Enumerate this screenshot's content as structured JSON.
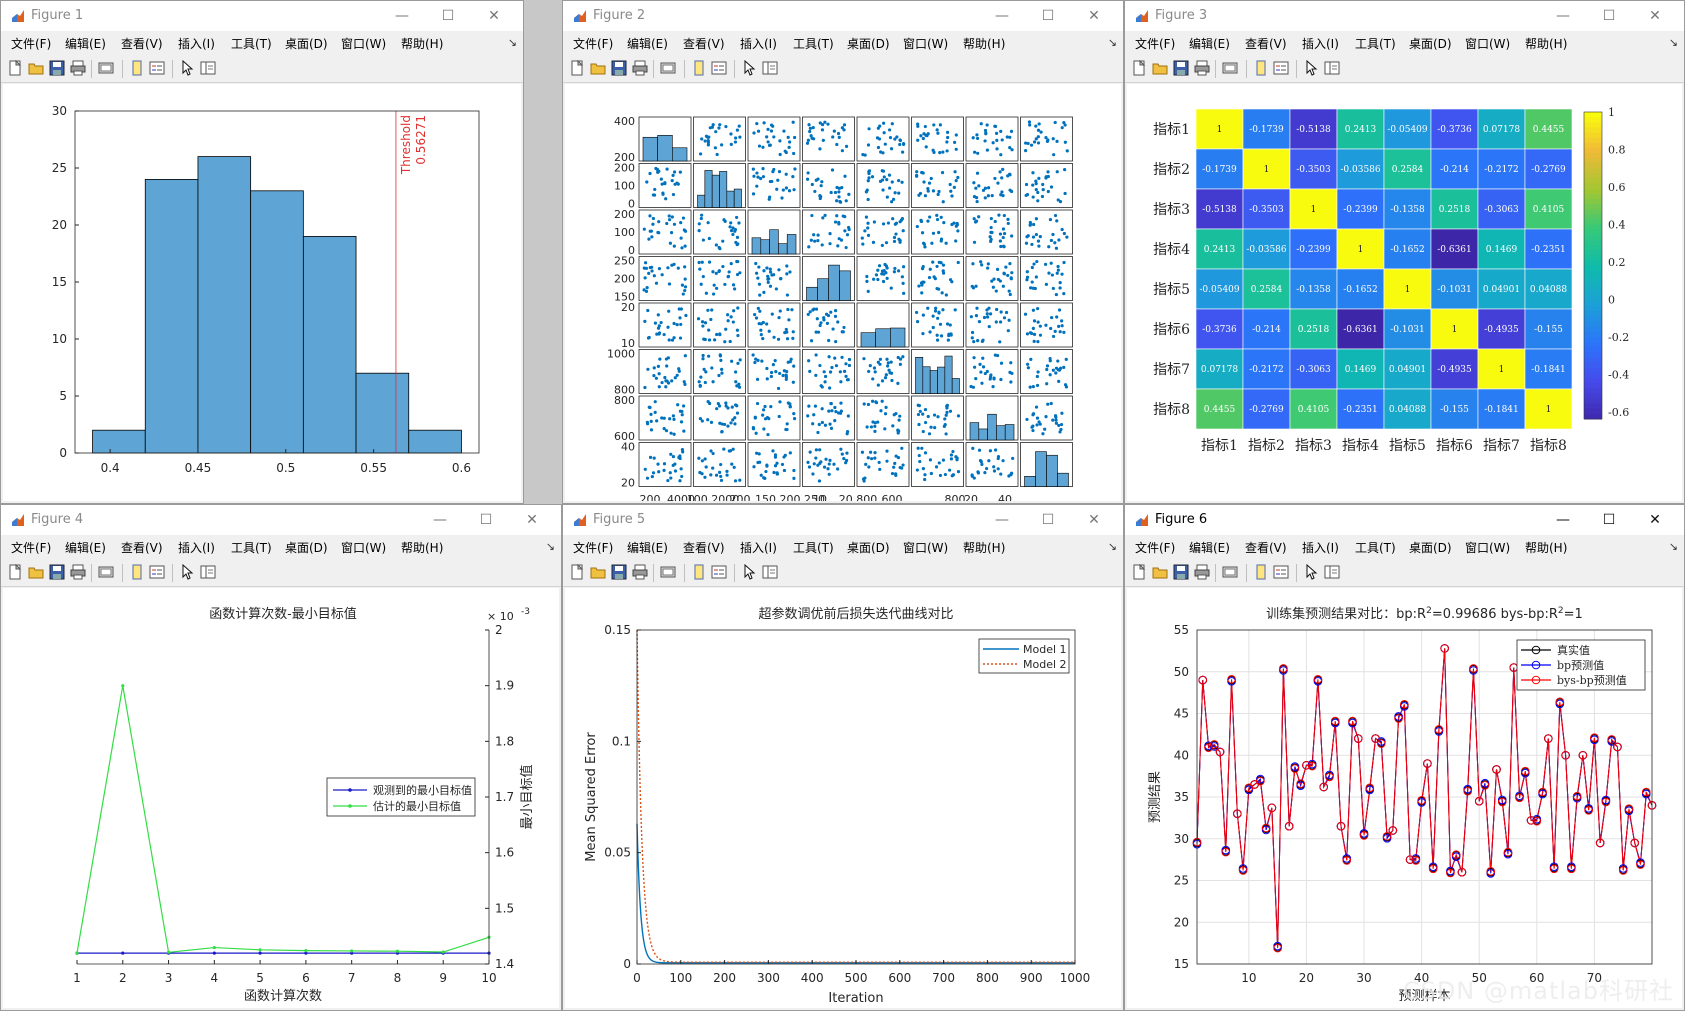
{
  "menus": [
    "文件(F)",
    "编辑(E)",
    "查看(V)",
    "插入(I)",
    "工具(T)",
    "桌面(D)",
    "窗口(W)",
    "帮助(H)"
  ],
  "window_buttons": {
    "minimize": "—",
    "maximize": "☐",
    "close": "✕"
  },
  "toolbar_icons": [
    "new-figure-icon",
    "open-folder-icon",
    "save-icon",
    "print-icon",
    "print-preview-icon",
    "link-plot-icon",
    "insert-legend-icon",
    "pointer-icon",
    "property-inspector-icon"
  ],
  "figures": [
    {
      "title": "Figure 1",
      "active": false
    },
    {
      "title": "Figure 2",
      "active": false
    },
    {
      "title": "Figure 3",
      "active": false
    },
    {
      "title": "Figure 4",
      "active": false
    },
    {
      "title": "Figure 5",
      "active": false
    },
    {
      "title": "Figure 6",
      "active": true
    }
  ],
  "watermark": "CSDN @matlab科研社",
  "chart_data": [
    {
      "type": "bar",
      "subtype": "histogram",
      "bin_edges": [
        0.39,
        0.42,
        0.45,
        0.48,
        0.51,
        0.54,
        0.57,
        0.6
      ],
      "values": [
        2,
        24,
        26,
        23,
        19,
        7,
        2
      ],
      "xlim": [
        0.38,
        0.61
      ],
      "ylim": [
        0,
        30
      ],
      "xticks": [
        0.4,
        0.45,
        0.5,
        0.55,
        0.6
      ],
      "xtick_labels": [
        "0.4",
        "0.45",
        "0.5",
        "0.55",
        "0.6"
      ],
      "yticks": [
        0,
        5,
        10,
        15,
        20,
        25,
        30
      ],
      "ytick_labels": [
        "0",
        "5",
        "10",
        "15",
        "20",
        "25",
        "30"
      ],
      "threshold": {
        "value": 0.56271,
        "label": "Threshold",
        "value_label": "0.56271",
        "color": "#e03030"
      },
      "bar_color": "#5ea5d5"
    },
    {
      "type": "scatter",
      "subtype": "scatter-matrix",
      "n": 8,
      "ytick_labels": [
        [
          "200",
          "400"
        ],
        [
          "0",
          "100",
          "200"
        ],
        [
          "0",
          "100",
          "200"
        ],
        [
          "150",
          "200",
          "250"
        ],
        [
          "10",
          "20"
        ],
        [
          "800",
          "1000"
        ],
        [
          "600",
          "800"
        ],
        [
          "20",
          "40"
        ]
      ],
      "xtick_label_text": [
        "200",
        "4000",
        "100 2000",
        "200",
        "150 200 250",
        "10",
        "20 800",
        "600",
        "800",
        "20",
        "40"
      ],
      "color": "#0072bd"
    },
    {
      "type": "heatmap",
      "row_labels": [
        "指标1",
        "指标2",
        "指标3",
        "指标4",
        "指标5",
        "指标6",
        "指标7",
        "指标8"
      ],
      "col_labels": [
        "指标1",
        "指标2",
        "指标3",
        "指标4",
        "指标5",
        "指标6",
        "指标7",
        "指标8"
      ],
      "cells": [
        [
          "1",
          "-0.1739",
          "-0.5138",
          "0.2413",
          "-0.05409",
          "-0.3736",
          "0.07178",
          "0.4455"
        ],
        [
          "-0.1739",
          "1",
          "-0.3503",
          "-0.03586",
          "0.2584",
          "-0.214",
          "-0.2172",
          "-0.2769"
        ],
        [
          "-0.5138",
          "-0.3503",
          "1",
          "-0.2399",
          "-0.1358",
          "0.2518",
          "-0.3063",
          "0.4105"
        ],
        [
          "0.2413",
          "-0.03586",
          "-0.2399",
          "1",
          "-0.1652",
          "-0.6361",
          "0.1469",
          "-0.2351"
        ],
        [
          "-0.05409",
          "0.2584",
          "-0.1358",
          "-0.1652",
          "1",
          "-0.1031",
          "0.04901",
          "0.04088"
        ],
        [
          "-0.3736",
          "-0.214",
          "0.2518",
          "-0.6361",
          "-0.1031",
          "1",
          "-0.4935",
          "-0.155"
        ],
        [
          "0.07178",
          "-0.2172",
          "-0.3063",
          "0.1469",
          "0.04901",
          "-0.4935",
          "1",
          "-0.1841"
        ],
        [
          "0.4455",
          "-0.2769",
          "0.4105",
          "-0.2351",
          "0.04088",
          "-0.155",
          "-0.1841",
          "1"
        ]
      ],
      "clim": [
        -0.6361,
        1
      ],
      "colorbar_ticks": [
        "1",
        "0.8",
        "0.6",
        "0.4",
        "0.2",
        "0",
        "-0.2",
        "-0.4",
        "-0.6"
      ],
      "colormap": "parula"
    },
    {
      "type": "line",
      "title": "函数计算次数-最小目标值",
      "xlabel": "函数计算次数",
      "ylabel": "最小目标值",
      "x": [
        1,
        2,
        3,
        4,
        5,
        6,
        7,
        8,
        9,
        10
      ],
      "xlim": [
        1,
        10
      ],
      "ylim": [
        1.4,
        2.0
      ],
      "exponent_label": "× 10",
      "exponent": "-3",
      "yticks": [
        "1.4",
        "1.5",
        "1.6",
        "1.7",
        "1.8",
        "1.9",
        "2"
      ],
      "series": [
        {
          "name": "观测到的最小目标值",
          "color": "#1a1ac8",
          "values": [
            1.4195,
            1.4195,
            1.4195,
            1.4195,
            1.4195,
            1.4195,
            1.4195,
            1.4195,
            1.4195,
            1.4195
          ]
        },
        {
          "name": "估计的最小目标值",
          "color": "#33dd44",
          "values": [
            1.4195,
            1.9,
            1.421,
            1.4295,
            1.4255,
            1.424,
            1.4235,
            1.423,
            1.4215,
            1.448
          ]
        }
      ],
      "legend_position": "center-right"
    },
    {
      "type": "line",
      "title": "超参数调优前后损失迭代曲线对比",
      "xlabel": "Iteration",
      "ylabel": "Mean Squared Error",
      "xlim": [
        0,
        1000
      ],
      "ylim": [
        0,
        0.15
      ],
      "xticks": [
        "0",
        "100",
        "200",
        "300",
        "400",
        "500",
        "600",
        "700",
        "800",
        "900",
        "1000"
      ],
      "yticks": [
        "0",
        "0.05",
        "0.1",
        "0.15"
      ],
      "series": [
        {
          "name": "Model 1",
          "color": "#0072bd",
          "style": "solid",
          "start": 0.063,
          "decay": 0.04,
          "floor": 0.0005
        },
        {
          "name": "Model 2",
          "color": "#d95319",
          "style": "dotted",
          "start": 0.15,
          "decay": 0.03,
          "floor": 0.0008
        }
      ],
      "legend_position": "top-right"
    },
    {
      "type": "line",
      "title_prefix": "训练集预测结果对比：bp:R",
      "title_mid": "=0.99686  bys-bp:R",
      "title_end": "=1",
      "xlabel": "预测样本",
      "ylabel": "预测结果",
      "xlim": [
        1,
        80
      ],
      "ylim": [
        15,
        55
      ],
      "xticks": [
        "10",
        "20",
        "30",
        "40",
        "50",
        "60",
        "70"
      ],
      "yticks": [
        "15",
        "20",
        "25",
        "30",
        "35",
        "40",
        "45",
        "50",
        "55"
      ],
      "grid": true,
      "values": [
        29.5,
        49.0,
        41.0,
        41.2,
        40.4,
        28.5,
        49.0,
        33.0,
        26.3,
        36.0,
        36.5,
        37.0,
        31.2,
        33.7,
        17.0,
        50.3,
        31.5,
        38.5,
        36.5,
        38.8,
        38.8,
        49.0,
        36.2,
        37.5,
        44.0,
        31.5,
        27.5,
        44.0,
        42.0,
        30.5,
        36.0,
        42.0,
        41.5,
        30.2,
        31.0,
        44.5,
        46.0,
        27.5,
        27.5,
        34.5,
        39.0,
        26.5,
        43.0,
        52.8,
        26.0,
        28.0,
        26.0,
        35.8,
        50.3,
        34.5,
        36.5,
        26.0,
        38.3,
        34.5,
        28.3,
        50.5,
        35.0,
        38.0,
        32.2,
        32.2,
        35.5,
        42.0,
        26.5,
        46.3,
        40.0,
        26.5,
        35.0,
        40.0,
        33.5,
        42.0,
        29.5,
        34.5,
        41.8,
        41.0,
        26.3,
        33.5,
        29.5,
        27.0,
        35.5,
        34.0
      ],
      "series": [
        {
          "name": "真实值",
          "color": "#000000"
        },
        {
          "name": "bp预测值",
          "color": "#0000ff"
        },
        {
          "name": "bys-bp预测值",
          "color": "#ff0000"
        }
      ],
      "legend_position": "top-right"
    }
  ]
}
